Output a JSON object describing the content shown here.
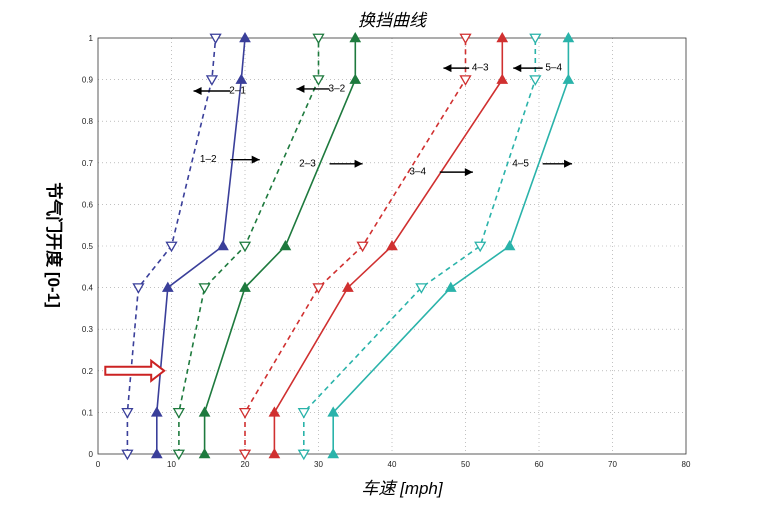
{
  "chart_data": {
    "type": "line",
    "title": "换挡曲线",
    "xlabel": "车速 [mph]",
    "ylabel": "节气门开度 [0-1]",
    "xlim": [
      0,
      80
    ],
    "ylim": [
      0,
      1
    ],
    "xticks": [
      0,
      10,
      20,
      30,
      40,
      50,
      60,
      70,
      80
    ],
    "yticks": [
      0,
      0.1,
      0.2,
      0.3,
      0.4,
      0.5,
      0.6,
      0.7,
      0.8,
      0.9,
      1
    ],
    "grid": "dotted",
    "legend": "none",
    "series": [
      {
        "color": "#3a3f9a",
        "style": "solid",
        "marker": "triangle-up",
        "x": [
          8,
          8,
          9.5,
          17,
          19.5,
          20
        ],
        "y": [
          0,
          0.1,
          0.4,
          0.5,
          0.9,
          1
        ]
      },
      {
        "color": "#3a3f9a",
        "style": "dashed",
        "marker": "triangle-down",
        "x": [
          4,
          4,
          5.5,
          10,
          15.5,
          16
        ],
        "y": [
          0,
          0.1,
          0.4,
          0.5,
          0.9,
          1
        ]
      },
      {
        "color": "#1e7a3e",
        "style": "solid",
        "marker": "triangle-up",
        "x": [
          14.5,
          14.5,
          20,
          25.5,
          35,
          35
        ],
        "y": [
          0,
          0.1,
          0.4,
          0.5,
          0.9,
          1
        ]
      },
      {
        "color": "#1e7a3e",
        "style": "dashed",
        "marker": "triangle-down",
        "x": [
          11,
          11,
          14.5,
          20,
          30,
          30
        ],
        "y": [
          0,
          0.1,
          0.4,
          0.5,
          0.9,
          1
        ]
      },
      {
        "color": "#d03030",
        "style": "solid",
        "marker": "triangle-up",
        "x": [
          24,
          24,
          34,
          40,
          55,
          55
        ],
        "y": [
          0,
          0.1,
          0.4,
          0.5,
          0.9,
          1
        ]
      },
      {
        "color": "#d03030",
        "style": "dashed",
        "marker": "triangle-down",
        "x": [
          20,
          20,
          30,
          36,
          50,
          50
        ],
        "y": [
          0,
          0.1,
          0.4,
          0.5,
          0.9,
          1
        ]
      },
      {
        "color": "#2ab3aa",
        "style": "solid",
        "marker": "triangle-up",
        "x": [
          32,
          32,
          48,
          56,
          64,
          64
        ],
        "y": [
          0,
          0.1,
          0.4,
          0.5,
          0.9,
          1
        ]
      },
      {
        "color": "#2ab3aa",
        "style": "dashed",
        "marker": "triangle-down",
        "x": [
          28,
          28,
          44,
          52,
          59.5,
          59.5
        ],
        "y": [
          0,
          0.1,
          0.4,
          0.5,
          0.9,
          1
        ]
      }
    ],
    "annotations": [
      {
        "text": "1–2",
        "x": 15,
        "y": 0.71,
        "arrow": "right",
        "arrow_from": 18,
        "arrow_to": 22
      },
      {
        "text": "2–3",
        "x": 28.5,
        "y": 0.7,
        "arrow": "right",
        "arrow_from": 31.5,
        "arrow_to": 36
      },
      {
        "text": "3–4",
        "x": 43.5,
        "y": 0.68,
        "arrow": "right",
        "arrow_from": 46.5,
        "arrow_to": 51
      },
      {
        "text": "4–5",
        "x": 57.5,
        "y": 0.7,
        "arrow": "right",
        "arrow_from": 60.5,
        "arrow_to": 64.5
      },
      {
        "text": "2–1",
        "x": 19,
        "y": 0.875,
        "arrow": "left",
        "arrow_from": 18,
        "arrow_to": 13
      },
      {
        "text": "3–2",
        "x": 32.5,
        "y": 0.88,
        "arrow": "left",
        "arrow_from": 31.5,
        "arrow_to": 27
      },
      {
        "text": "4–3",
        "x": 52,
        "y": 0.93,
        "arrow": "left",
        "arrow_from": 50.5,
        "arrow_to": 47
      },
      {
        "text": "5–4",
        "x": 62,
        "y": 0.93,
        "arrow": "left",
        "arrow_from": 60.5,
        "arrow_to": 56.5
      }
    ],
    "highlight_arrow": {
      "color": "#cc2222",
      "y": 0.2,
      "x_from": 1,
      "x_to": 9
    }
  }
}
